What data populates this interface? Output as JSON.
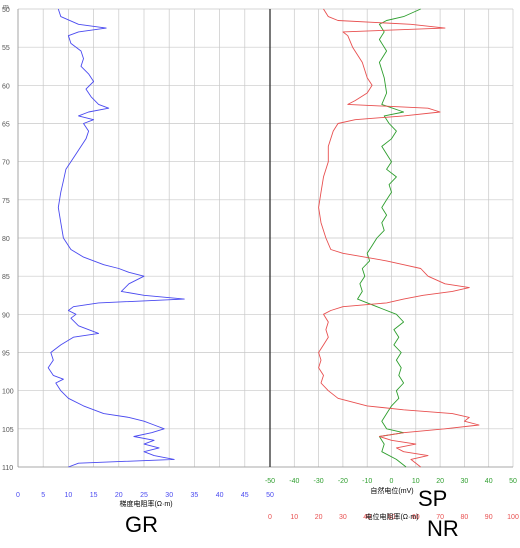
{
  "header": {
    "unit": "m"
  },
  "labels": {
    "gr": "GR",
    "sp": "SP",
    "nr": "NR"
  },
  "colors": {
    "gr": "#4a4af0",
    "sp": "#2e9e2e",
    "nr": "#e85050",
    "grid": "#c8c8c8",
    "divider": "#303030"
  },
  "chart_data": {
    "type": "line",
    "depth_axis": {
      "range": [
        50,
        110
      ],
      "ticks": [
        50,
        55,
        60,
        65,
        70,
        75,
        80,
        85,
        90,
        95,
        100,
        105,
        110
      ],
      "tick_labels": [
        "50",
        "55",
        "60",
        "65",
        "70",
        "75",
        "80",
        "85",
        "90",
        "95",
        "100",
        "105",
        "110"
      ],
      "inverted": true
    },
    "left_track": {
      "x_axis": {
        "label": "梯度电阻率(Ω·m)",
        "range": [
          0,
          50
        ],
        "ticks": [
          0,
          5,
          10,
          15,
          20,
          25,
          30,
          35,
          40,
          45,
          50
        ],
        "tick_labels": [
          "0",
          "5",
          "10",
          "15",
          "20",
          "25",
          "30",
          "35",
          "40",
          "45",
          "50"
        ]
      },
      "series": [
        {
          "points": [
            [
              50.0,
              8.0
            ],
            [
              51.0,
              8.5
            ],
            [
              52.0,
              12.0
            ],
            [
              52.5,
              17.5
            ],
            [
              53.0,
              12.0
            ],
            [
              53.5,
              10.0
            ],
            [
              54.5,
              10.5
            ],
            [
              55.5,
              12.5
            ],
            [
              56.5,
              13.0
            ],
            [
              57.5,
              12.5
            ],
            [
              58.5,
              14.0
            ],
            [
              59.5,
              15.0
            ],
            [
              60.5,
              13.5
            ],
            [
              61.5,
              14.5
            ],
            [
              62.5,
              16.0
            ],
            [
              63.0,
              18.0
            ],
            [
              63.5,
              14.0
            ],
            [
              64.0,
              12.0
            ],
            [
              64.5,
              15.0
            ],
            [
              65.0,
              13.0
            ],
            [
              66.0,
              14.0
            ],
            [
              67.0,
              13.5
            ],
            [
              68.0,
              12.5
            ],
            [
              69.0,
              11.5
            ],
            [
              70.0,
              10.5
            ],
            [
              71.0,
              9.5
            ],
            [
              72.5,
              9.0
            ],
            [
              74.0,
              8.5
            ],
            [
              76.0,
              8.0
            ],
            [
              78.0,
              8.5
            ],
            [
              80.0,
              9.0
            ],
            [
              81.5,
              10.5
            ],
            [
              82.5,
              13.0
            ],
            [
              83.5,
              17.0
            ],
            [
              84.0,
              20.0
            ],
            [
              84.5,
              22.0
            ],
            [
              85.0,
              25.0
            ],
            [
              86.0,
              22.0
            ],
            [
              87.0,
              20.5
            ],
            [
              87.5,
              25.0
            ],
            [
              88.0,
              33.0
            ],
            [
              88.5,
              16.0
            ],
            [
              89.0,
              11.0
            ],
            [
              89.5,
              10.0
            ],
            [
              90.0,
              11.5
            ],
            [
              90.5,
              10.5
            ],
            [
              91.5,
              12.0
            ],
            [
              92.5,
              16.0
            ],
            [
              93.0,
              11.0
            ],
            [
              94.0,
              8.5
            ],
            [
              95.0,
              6.5
            ],
            [
              96.0,
              7.0
            ],
            [
              97.0,
              6.0
            ],
            [
              98.0,
              7.0
            ],
            [
              98.5,
              9.0
            ],
            [
              99.0,
              7.5
            ],
            [
              100.0,
              8.5
            ],
            [
              101.0,
              10.0
            ],
            [
              102.0,
              13.0
            ],
            [
              103.0,
              17.0
            ],
            [
              103.5,
              22.0
            ],
            [
              104.0,
              25.0
            ],
            [
              104.5,
              27.0
            ],
            [
              105.0,
              29.0
            ],
            [
              105.5,
              26.5
            ],
            [
              106.0,
              23.0
            ],
            [
              106.5,
              27.0
            ],
            [
              107.0,
              25.0
            ],
            [
              107.5,
              28.0
            ],
            [
              108.0,
              25.0
            ],
            [
              108.5,
              27.0
            ],
            [
              109.0,
              31.0
            ],
            [
              109.5,
              12.0
            ],
            [
              110.0,
              10.0
            ]
          ]
        }
      ]
    },
    "right_track": {
      "sp_axis": {
        "label": "自然电位(mV)",
        "range": [
          -50,
          50
        ],
        "ticks": [
          -50,
          -40,
          -30,
          -20,
          -10,
          0,
          10,
          20,
          30,
          40,
          50
        ],
        "tick_labels": [
          "-50",
          "-40",
          "-30",
          "-20",
          "-10",
          "0",
          "10",
          "20",
          "30",
          "40",
          "50"
        ]
      },
      "nr_axis": {
        "label": "电位电阻率(Ω·m)",
        "range": [
          0,
          100
        ],
        "ticks": [
          0,
          10,
          20,
          30,
          40,
          50,
          60,
          70,
          80,
          90,
          100
        ],
        "tick_labels": [
          "0",
          "10",
          "20",
          "30",
          "40",
          "50",
          "60",
          "70",
          "80",
          "90",
          "100"
        ]
      },
      "series": [
        {
          "axis": "sp",
          "points": [
            [
              50.0,
              12.0
            ],
            [
              51.0,
              5.0
            ],
            [
              51.5,
              -2.0
            ],
            [
              52.0,
              -5.0
            ],
            [
              53.0,
              -3.0
            ],
            [
              54.0,
              -5.0
            ],
            [
              55.5,
              -2.0
            ],
            [
              57.0,
              -5.0
            ],
            [
              59.0,
              -3.0
            ],
            [
              61.0,
              -2.0
            ],
            [
              62.5,
              -4.0
            ],
            [
              63.5,
              5.0
            ],
            [
              64.0,
              -3.0
            ],
            [
              65.0,
              -1.0
            ],
            [
              66.0,
              2.0
            ],
            [
              67.0,
              0.0
            ],
            [
              68.0,
              -4.0
            ],
            [
              69.0,
              -2.0
            ],
            [
              70.0,
              0.0
            ],
            [
              71.0,
              -2.0
            ],
            [
              72.0,
              2.0
            ],
            [
              73.0,
              -1.0
            ],
            [
              74.0,
              0.0
            ],
            [
              75.0,
              -2.0
            ],
            [
              76.0,
              -4.0
            ],
            [
              77.0,
              -2.0
            ],
            [
              78.0,
              -4.0
            ],
            [
              79.0,
              -3.0
            ],
            [
              80.0,
              -6.0
            ],
            [
              81.0,
              -8.0
            ],
            [
              82.0,
              -10.0
            ],
            [
              83.0,
              -9.0
            ],
            [
              84.0,
              -12.0
            ],
            [
              85.0,
              -11.0
            ],
            [
              86.0,
              -13.0
            ],
            [
              87.0,
              -12.0
            ],
            [
              88.0,
              -14.0
            ],
            [
              89.0,
              -6.0
            ],
            [
              90.0,
              2.0
            ],
            [
              91.0,
              5.0
            ],
            [
              92.0,
              1.0
            ],
            [
              93.0,
              3.0
            ],
            [
              94.0,
              1.0
            ],
            [
              95.0,
              4.0
            ],
            [
              96.0,
              2.0
            ],
            [
              97.0,
              4.0
            ],
            [
              98.0,
              3.0
            ],
            [
              99.0,
              5.0
            ],
            [
              100.0,
              2.0
            ],
            [
              101.0,
              3.0
            ],
            [
              102.0,
              0.0
            ],
            [
              103.0,
              -2.0
            ],
            [
              104.0,
              -4.0
            ],
            [
              105.0,
              -2.0
            ],
            [
              105.5,
              5.0
            ],
            [
              106.0,
              -5.0
            ],
            [
              107.0,
              -3.0
            ],
            [
              108.0,
              -4.0
            ],
            [
              109.0,
              2.0
            ],
            [
              110.0,
              6.0
            ]
          ]
        },
        {
          "axis": "nr",
          "points": [
            [
              50.0,
              22.0
            ],
            [
              51.0,
              24.0
            ],
            [
              51.5,
              28.0
            ],
            [
              52.0,
              58.0
            ],
            [
              52.5,
              72.0
            ],
            [
              53.0,
              30.0
            ],
            [
              53.5,
              32.0
            ],
            [
              55.0,
              34.0
            ],
            [
              57.0,
              38.0
            ],
            [
              59.0,
              40.0
            ],
            [
              60.0,
              42.0
            ],
            [
              61.0,
              40.0
            ],
            [
              62.0,
              35.0
            ],
            [
              62.5,
              32.0
            ],
            [
              63.0,
              65.0
            ],
            [
              63.5,
              70.0
            ],
            [
              64.0,
              55.0
            ],
            [
              64.5,
              35.0
            ],
            [
              65.0,
              28.0
            ],
            [
              66.0,
              26.0
            ],
            [
              68.0,
              24.0
            ],
            [
              70.0,
              24.0
            ],
            [
              72.0,
              22.0
            ],
            [
              74.0,
              21.0
            ],
            [
              76.0,
              20.0
            ],
            [
              78.0,
              21.0
            ],
            [
              80.0,
              23.0
            ],
            [
              81.5,
              25.0
            ],
            [
              82.0,
              30.0
            ],
            [
              83.0,
              48.0
            ],
            [
              83.5,
              55.0
            ],
            [
              84.0,
              62.0
            ],
            [
              85.0,
              65.0
            ],
            [
              86.0,
              72.0
            ],
            [
              86.5,
              82.0
            ],
            [
              87.0,
              75.0
            ],
            [
              87.5,
              63.0
            ],
            [
              88.0,
              55.0
            ],
            [
              88.5,
              48.0
            ],
            [
              89.0,
              30.0
            ],
            [
              89.5,
              25.0
            ],
            [
              90.0,
              22.0
            ],
            [
              91.0,
              24.0
            ],
            [
              92.0,
              23.0
            ],
            [
              93.0,
              24.0
            ],
            [
              94.0,
              22.0
            ],
            [
              95.0,
              20.0
            ],
            [
              96.0,
              21.0
            ],
            [
              97.0,
              20.0
            ],
            [
              98.0,
              22.0
            ],
            [
              99.0,
              21.0
            ],
            [
              100.0,
              24.0
            ],
            [
              101.0,
              28.0
            ],
            [
              102.0,
              40.0
            ],
            [
              102.5,
              55.0
            ],
            [
              103.0,
              75.0
            ],
            [
              103.5,
              82.0
            ],
            [
              104.0,
              80.0
            ],
            [
              104.5,
              86.0
            ],
            [
              105.0,
              72.0
            ],
            [
              105.5,
              55.0
            ],
            [
              106.0,
              45.0
            ],
            [
              106.5,
              50.0
            ],
            [
              107.0,
              60.0
            ],
            [
              107.5,
              52.0
            ],
            [
              108.0,
              55.0
            ],
            [
              108.5,
              65.0
            ],
            [
              109.0,
              58.0
            ],
            [
              110.0,
              62.0
            ]
          ]
        }
      ]
    }
  }
}
